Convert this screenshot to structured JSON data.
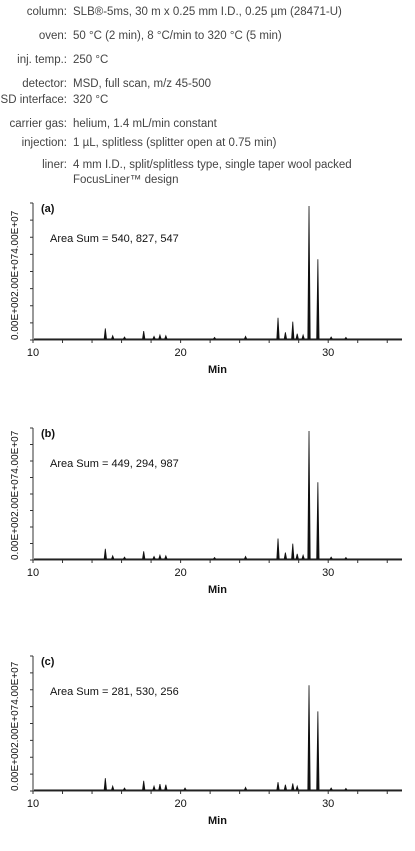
{
  "method": {
    "rows": [
      {
        "label": "column:",
        "value": "SLB®-5ms, 30 m x 0.25 mm I.D., 0.25 µm (28471-U)"
      },
      {
        "label": "oven:",
        "value": "50 °C (2 min), 8 °C/min to 320 °C (5 min)"
      },
      {
        "label": "inj. temp.:",
        "value": "250 °C"
      },
      {
        "label": "detector:",
        "value": "MSD, full scan, m/z 45-500"
      },
      {
        "label": "MSD interface:",
        "value": "320 °C"
      },
      {
        "label": "carrier gas:",
        "value": "helium, 1.4 mL/min constant"
      },
      {
        "label": "injection:",
        "value": "1 µL, splitless (splitter open at 0.75 min)"
      },
      {
        "label": "liner:",
        "value": "4 mm I.D., split/splitless type, single taper wool packed FocusLiner™ design"
      }
    ]
  },
  "chart_data": [
    {
      "type": "line",
      "tag": "(a)",
      "annotation": "Area Sum = 540, 827, 547",
      "xlabel": "Min",
      "ylabel": "0.00E+002.00E+074.00E+07",
      "xlim": [
        10,
        35
      ],
      "xticks": [
        "10",
        "20",
        "30"
      ],
      "ylim": [
        0,
        1
      ],
      "peaks": [
        [
          14.9,
          0.08
        ],
        [
          15.4,
          0.025
        ],
        [
          16.2,
          0.015
        ],
        [
          17.5,
          0.06
        ],
        [
          18.2,
          0.02
        ],
        [
          18.6,
          0.03
        ],
        [
          19.0,
          0.025
        ],
        [
          22.3,
          0.012
        ],
        [
          24.4,
          0.02
        ],
        [
          26.6,
          0.16
        ],
        [
          27.1,
          0.05
        ],
        [
          27.6,
          0.13
        ],
        [
          27.9,
          0.04
        ],
        [
          28.3,
          0.03
        ],
        [
          28.7,
          1.0
        ],
        [
          29.3,
          0.6
        ],
        [
          30.2,
          0.015
        ],
        [
          31.2,
          0.012
        ]
      ]
    },
    {
      "type": "line",
      "tag": "(b)",
      "annotation": "Area Sum = 449, 294, 987",
      "xlabel": "Min",
      "ylabel": "0.00E+002.00E+074.00E+07",
      "xlim": [
        10,
        35
      ],
      "xticks": [
        "10",
        "20",
        "30"
      ],
      "ylim": [
        0,
        1
      ],
      "peaks": [
        [
          14.9,
          0.08
        ],
        [
          15.4,
          0.025
        ],
        [
          16.2,
          0.015
        ],
        [
          17.5,
          0.06
        ],
        [
          18.2,
          0.02
        ],
        [
          18.6,
          0.03
        ],
        [
          19.0,
          0.025
        ],
        [
          22.3,
          0.012
        ],
        [
          24.4,
          0.02
        ],
        [
          26.6,
          0.16
        ],
        [
          27.1,
          0.05
        ],
        [
          27.6,
          0.12
        ],
        [
          27.9,
          0.04
        ],
        [
          28.3,
          0.03
        ],
        [
          28.7,
          1.0
        ],
        [
          29.3,
          0.6
        ],
        [
          30.2,
          0.015
        ],
        [
          31.2,
          0.012
        ]
      ]
    },
    {
      "type": "line",
      "tag": "(c)",
      "annotation": "Area Sum = 281, 530, 256",
      "xlabel": "Min",
      "ylabel": "0.00E+002.00E+074.00E+07",
      "xlim": [
        10,
        35
      ],
      "xticks": [
        "10",
        "20",
        "30"
      ],
      "ylim": [
        0,
        1
      ],
      "peaks": [
        [
          14.9,
          0.09
        ],
        [
          15.4,
          0.03
        ],
        [
          16.2,
          0.015
        ],
        [
          17.5,
          0.07
        ],
        [
          18.2,
          0.03
        ],
        [
          18.6,
          0.045
        ],
        [
          19.0,
          0.04
        ],
        [
          20.3,
          0.015
        ],
        [
          24.4,
          0.02
        ],
        [
          26.6,
          0.06
        ],
        [
          27.1,
          0.04
        ],
        [
          27.6,
          0.05
        ],
        [
          27.9,
          0.03
        ],
        [
          28.7,
          0.8
        ],
        [
          29.3,
          0.6
        ],
        [
          30.2,
          0.015
        ],
        [
          31.2,
          0.012
        ]
      ]
    }
  ]
}
